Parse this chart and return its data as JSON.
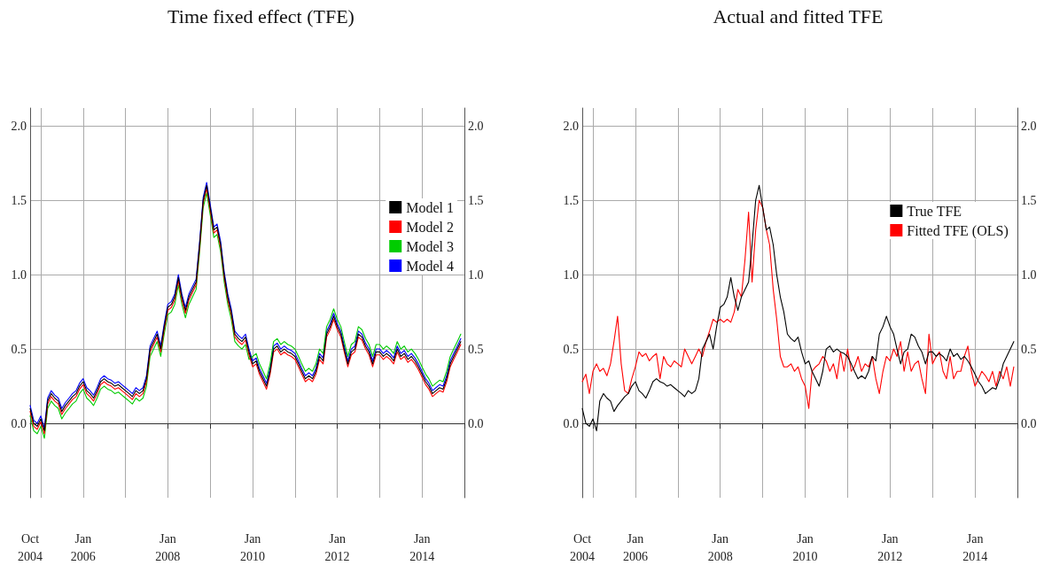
{
  "chart_data": [
    {
      "type": "line",
      "title": "Time fixed effect (TFE)",
      "legend": "right",
      "grid": true,
      "marker": "none",
      "line_style": "solid",
      "x": [
        "2004-10",
        "2004-11",
        "2004-12",
        "2005-01",
        "2005-02",
        "2005-03",
        "2005-04",
        "2005-05",
        "2005-06",
        "2005-07",
        "2005-08",
        "2005-09",
        "2005-10",
        "2005-11",
        "2005-12",
        "2006-01",
        "2006-02",
        "2006-03",
        "2006-04",
        "2006-05",
        "2006-06",
        "2006-07",
        "2006-08",
        "2006-09",
        "2006-10",
        "2006-11",
        "2006-12",
        "2007-01",
        "2007-02",
        "2007-03",
        "2007-04",
        "2007-05",
        "2007-06",
        "2007-07",
        "2007-08",
        "2007-09",
        "2007-10",
        "2007-11",
        "2007-12",
        "2008-01",
        "2008-02",
        "2008-03",
        "2008-04",
        "2008-05",
        "2008-06",
        "2008-07",
        "2008-08",
        "2008-09",
        "2008-10",
        "2008-11",
        "2008-12",
        "2009-01",
        "2009-02",
        "2009-03",
        "2009-04",
        "2009-05",
        "2009-06",
        "2009-07",
        "2009-08",
        "2009-09",
        "2009-10",
        "2009-11",
        "2009-12",
        "2010-01",
        "2010-02",
        "2010-03",
        "2010-04",
        "2010-05",
        "2010-06",
        "2010-07",
        "2010-08",
        "2010-09",
        "2010-10",
        "2010-11",
        "2010-12",
        "2011-01",
        "2011-02",
        "2011-03",
        "2011-04",
        "2011-05",
        "2011-06",
        "2011-07",
        "2011-08",
        "2011-09",
        "2011-10",
        "2011-11",
        "2011-12",
        "2012-01",
        "2012-02",
        "2012-03",
        "2012-04",
        "2012-05",
        "2012-06",
        "2012-07",
        "2012-08",
        "2012-09",
        "2012-10",
        "2012-11",
        "2012-12",
        "2013-01",
        "2013-02",
        "2013-03",
        "2013-04",
        "2013-05",
        "2013-06",
        "2013-07",
        "2013-08",
        "2013-09",
        "2013-10",
        "2013-11",
        "2013-12",
        "2014-01",
        "2014-02",
        "2014-03",
        "2014-04",
        "2014-05",
        "2014-06",
        "2014-07",
        "2014-08",
        "2014-09",
        "2014-10",
        "2014-11",
        "2014-12"
      ],
      "xlim": [
        "2004-10",
        "2015-01"
      ],
      "xticks": [
        {
          "value": "2004-10",
          "label": "Oct\n2004"
        },
        {
          "value": "2005-01",
          "label": null
        },
        {
          "value": "2006-01",
          "label": "Jan\n2006"
        },
        {
          "value": "2007-01",
          "label": null
        },
        {
          "value": "2008-01",
          "label": "Jan\n2008"
        },
        {
          "value": "2009-01",
          "label": null
        },
        {
          "value": "2010-01",
          "label": "Jan\n2010"
        },
        {
          "value": "2011-01",
          "label": null
        },
        {
          "value": "2012-01",
          "label": "Jan\n2012"
        },
        {
          "value": "2013-01",
          "label": null
        },
        {
          "value": "2014-01",
          "label": "Jan\n2014"
        },
        {
          "value": "2015-01",
          "label": null
        }
      ],
      "ylim": [
        -0.5,
        2.12
      ],
      "yticks": [
        {
          "value": 0,
          "label": "0.0"
        },
        {
          "value": 0.5,
          "label": "0.5"
        },
        {
          "value": 1,
          "label": "1.0"
        },
        {
          "value": 1.5,
          "label": "1.5"
        },
        {
          "value": 2,
          "label": "2.0"
        }
      ],
      "y2lim": [
        -0.5,
        2.12
      ],
      "y2ticks": [
        {
          "value": 0,
          "label": "0.0"
        },
        {
          "value": 0.5,
          "label": "0.5"
        },
        {
          "value": 1,
          "label": "1.0"
        },
        {
          "value": 1.5,
          "label": "1.5"
        },
        {
          "value": 2,
          "label": "2.0"
        }
      ],
      "series": [
        {
          "name": "Model 1",
          "color": "#000000",
          "values": [
            0.1,
            0.0,
            -0.02,
            0.03,
            -0.05,
            0.15,
            0.2,
            0.17,
            0.15,
            0.08,
            0.12,
            0.15,
            0.18,
            0.2,
            0.25,
            0.28,
            0.22,
            0.2,
            0.17,
            0.22,
            0.28,
            0.3,
            0.28,
            0.27,
            0.25,
            0.26,
            0.24,
            0.22,
            0.2,
            0.18,
            0.22,
            0.2,
            0.22,
            0.3,
            0.5,
            0.55,
            0.6,
            0.5,
            0.65,
            0.78,
            0.8,
            0.85,
            0.98,
            0.85,
            0.76,
            0.85,
            0.9,
            0.95,
            1.2,
            1.5,
            1.6,
            1.45,
            1.3,
            1.32,
            1.2,
            1.0,
            0.85,
            0.75,
            0.6,
            0.57,
            0.55,
            0.58,
            0.48,
            0.4,
            0.42,
            0.35,
            0.3,
            0.25,
            0.35,
            0.5,
            0.52,
            0.48,
            0.5,
            0.48,
            0.47,
            0.45,
            0.4,
            0.35,
            0.3,
            0.32,
            0.3,
            0.35,
            0.45,
            0.42,
            0.6,
            0.65,
            0.72,
            0.65,
            0.6,
            0.5,
            0.4,
            0.48,
            0.5,
            0.6,
            0.58,
            0.52,
            0.48,
            0.4,
            0.48,
            0.48,
            0.45,
            0.47,
            0.45,
            0.42,
            0.5,
            0.45,
            0.47,
            0.43,
            0.45,
            0.42,
            0.38,
            0.33,
            0.28,
            0.25,
            0.2,
            0.22,
            0.24,
            0.23,
            0.3,
            0.4,
            0.45,
            0.5,
            0.55
          ]
        },
        {
          "name": "Model 2",
          "color": "#ff0000",
          "values": [
            0.08,
            -0.02,
            -0.04,
            0.01,
            -0.07,
            0.13,
            0.18,
            0.15,
            0.13,
            0.06,
            0.1,
            0.13,
            0.16,
            0.18,
            0.23,
            0.26,
            0.2,
            0.18,
            0.15,
            0.2,
            0.26,
            0.28,
            0.26,
            0.25,
            0.23,
            0.24,
            0.22,
            0.2,
            0.18,
            0.16,
            0.2,
            0.18,
            0.2,
            0.28,
            0.48,
            0.53,
            0.58,
            0.48,
            0.63,
            0.76,
            0.78,
            0.83,
            0.96,
            0.83,
            0.74,
            0.83,
            0.88,
            0.93,
            1.18,
            1.48,
            1.58,
            1.43,
            1.28,
            1.3,
            1.18,
            0.98,
            0.83,
            0.73,
            0.58,
            0.55,
            0.53,
            0.56,
            0.46,
            0.38,
            0.4,
            0.33,
            0.28,
            0.23,
            0.33,
            0.48,
            0.5,
            0.46,
            0.48,
            0.46,
            0.45,
            0.43,
            0.38,
            0.33,
            0.28,
            0.3,
            0.28,
            0.33,
            0.43,
            0.4,
            0.58,
            0.63,
            0.7,
            0.63,
            0.58,
            0.48,
            0.38,
            0.46,
            0.48,
            0.58,
            0.56,
            0.5,
            0.46,
            0.38,
            0.46,
            0.46,
            0.43,
            0.45,
            0.43,
            0.4,
            0.48,
            0.43,
            0.45,
            0.41,
            0.43,
            0.4,
            0.36,
            0.31,
            0.26,
            0.23,
            0.18,
            0.2,
            0.22,
            0.21,
            0.28,
            0.38,
            0.43,
            0.48,
            0.53
          ]
        },
        {
          "name": "Model 3",
          "color": "#00cc00",
          "values": [
            0.05,
            -0.05,
            -0.07,
            -0.02,
            -0.1,
            0.1,
            0.15,
            0.12,
            0.1,
            0.03,
            0.07,
            0.1,
            0.13,
            0.15,
            0.2,
            0.23,
            0.17,
            0.15,
            0.12,
            0.17,
            0.23,
            0.25,
            0.23,
            0.22,
            0.2,
            0.21,
            0.19,
            0.17,
            0.15,
            0.13,
            0.17,
            0.15,
            0.17,
            0.25,
            0.45,
            0.5,
            0.55,
            0.45,
            0.6,
            0.73,
            0.75,
            0.8,
            0.93,
            0.8,
            0.71,
            0.8,
            0.85,
            0.9,
            1.15,
            1.45,
            1.55,
            1.4,
            1.25,
            1.27,
            1.15,
            0.95,
            0.8,
            0.7,
            0.55,
            0.52,
            0.5,
            0.53,
            0.43,
            0.45,
            0.47,
            0.4,
            0.35,
            0.3,
            0.4,
            0.55,
            0.57,
            0.53,
            0.55,
            0.53,
            0.52,
            0.5,
            0.45,
            0.4,
            0.35,
            0.37,
            0.35,
            0.4,
            0.5,
            0.47,
            0.65,
            0.7,
            0.77,
            0.7,
            0.65,
            0.55,
            0.45,
            0.53,
            0.55,
            0.65,
            0.63,
            0.57,
            0.53,
            0.45,
            0.53,
            0.53,
            0.5,
            0.52,
            0.5,
            0.47,
            0.55,
            0.5,
            0.52,
            0.48,
            0.5,
            0.47,
            0.43,
            0.38,
            0.33,
            0.3,
            0.25,
            0.27,
            0.29,
            0.28,
            0.35,
            0.45,
            0.5,
            0.55,
            0.6
          ]
        },
        {
          "name": "Model 4",
          "color": "#0000ff",
          "values": [
            0.12,
            0.02,
            0.0,
            0.05,
            -0.03,
            0.17,
            0.22,
            0.19,
            0.17,
            0.1,
            0.14,
            0.17,
            0.2,
            0.22,
            0.27,
            0.3,
            0.24,
            0.22,
            0.19,
            0.24,
            0.3,
            0.32,
            0.3,
            0.29,
            0.27,
            0.28,
            0.26,
            0.24,
            0.22,
            0.2,
            0.24,
            0.22,
            0.24,
            0.32,
            0.52,
            0.57,
            0.62,
            0.52,
            0.67,
            0.8,
            0.82,
            0.87,
            1.0,
            0.87,
            0.78,
            0.87,
            0.92,
            0.97,
            1.22,
            1.52,
            1.62,
            1.47,
            1.32,
            1.34,
            1.22,
            1.02,
            0.87,
            0.77,
            0.62,
            0.59,
            0.57,
            0.6,
            0.5,
            0.42,
            0.44,
            0.37,
            0.32,
            0.27,
            0.37,
            0.52,
            0.54,
            0.5,
            0.52,
            0.5,
            0.49,
            0.47,
            0.42,
            0.37,
            0.32,
            0.34,
            0.32,
            0.37,
            0.47,
            0.44,
            0.62,
            0.67,
            0.74,
            0.67,
            0.62,
            0.52,
            0.42,
            0.5,
            0.52,
            0.62,
            0.6,
            0.54,
            0.5,
            0.42,
            0.5,
            0.5,
            0.47,
            0.49,
            0.47,
            0.44,
            0.52,
            0.47,
            0.49,
            0.45,
            0.47,
            0.44,
            0.4,
            0.35,
            0.3,
            0.27,
            0.22,
            0.24,
            0.26,
            0.25,
            0.32,
            0.42,
            0.47,
            0.52,
            0.57
          ]
        }
      ]
    },
    {
      "type": "line",
      "title": "Actual and fitted TFE",
      "legend": "top right",
      "grid": true,
      "marker": "none",
      "line_style": "solid",
      "x": [
        "2004-10",
        "2004-11",
        "2004-12",
        "2005-01",
        "2005-02",
        "2005-03",
        "2005-04",
        "2005-05",
        "2005-06",
        "2005-07",
        "2005-08",
        "2005-09",
        "2005-10",
        "2005-11",
        "2005-12",
        "2006-01",
        "2006-02",
        "2006-03",
        "2006-04",
        "2006-05",
        "2006-06",
        "2006-07",
        "2006-08",
        "2006-09",
        "2006-10",
        "2006-11",
        "2006-12",
        "2007-01",
        "2007-02",
        "2007-03",
        "2007-04",
        "2007-05",
        "2007-06",
        "2007-07",
        "2007-08",
        "2007-09",
        "2007-10",
        "2007-11",
        "2007-12",
        "2008-01",
        "2008-02",
        "2008-03",
        "2008-04",
        "2008-05",
        "2008-06",
        "2008-07",
        "2008-08",
        "2008-09",
        "2008-10",
        "2008-11",
        "2008-12",
        "2009-01",
        "2009-02",
        "2009-03",
        "2009-04",
        "2009-05",
        "2009-06",
        "2009-07",
        "2009-08",
        "2009-09",
        "2009-10",
        "2009-11",
        "2009-12",
        "2010-01",
        "2010-02",
        "2010-03",
        "2010-04",
        "2010-05",
        "2010-06",
        "2010-07",
        "2010-08",
        "2010-09",
        "2010-10",
        "2010-11",
        "2010-12",
        "2011-01",
        "2011-02",
        "2011-03",
        "2011-04",
        "2011-05",
        "2011-06",
        "2011-07",
        "2011-08",
        "2011-09",
        "2011-10",
        "2011-11",
        "2011-12",
        "2012-01",
        "2012-02",
        "2012-03",
        "2012-04",
        "2012-05",
        "2012-06",
        "2012-07",
        "2012-08",
        "2012-09",
        "2012-10",
        "2012-11",
        "2012-12",
        "2013-01",
        "2013-02",
        "2013-03",
        "2013-04",
        "2013-05",
        "2013-06",
        "2013-07",
        "2013-08",
        "2013-09",
        "2013-10",
        "2013-11",
        "2013-12",
        "2014-01",
        "2014-02",
        "2014-03",
        "2014-04",
        "2014-05",
        "2014-06",
        "2014-07",
        "2014-08",
        "2014-09",
        "2014-10",
        "2014-11",
        "2014-12"
      ],
      "xlim": [
        "2004-10",
        "2015-01"
      ],
      "xticks": [
        {
          "value": "2004-10",
          "label": "Oct\n2004"
        },
        {
          "value": "2005-01",
          "label": null
        },
        {
          "value": "2006-01",
          "label": "Jan\n2006"
        },
        {
          "value": "2007-01",
          "label": null
        },
        {
          "value": "2008-01",
          "label": "Jan\n2008"
        },
        {
          "value": "2009-01",
          "label": null
        },
        {
          "value": "2010-01",
          "label": "Jan\n2010"
        },
        {
          "value": "2011-01",
          "label": null
        },
        {
          "value": "2012-01",
          "label": "Jan\n2012"
        },
        {
          "value": "2013-01",
          "label": null
        },
        {
          "value": "2014-01",
          "label": "Jan\n2014"
        },
        {
          "value": "2015-01",
          "label": null
        }
      ],
      "ylim": [
        -0.5,
        2.12
      ],
      "yticks": [
        {
          "value": 0,
          "label": "0.0"
        },
        {
          "value": 0.5,
          "label": "0.5"
        },
        {
          "value": 1,
          "label": "1.0"
        },
        {
          "value": 1.5,
          "label": "1.5"
        },
        {
          "value": 2,
          "label": "2.0"
        }
      ],
      "y2lim": [
        -0.5,
        2.12
      ],
      "y2ticks": [
        {
          "value": 0,
          "label": "0.0"
        },
        {
          "value": 0.5,
          "label": "0.5"
        },
        {
          "value": 1,
          "label": "1.0"
        },
        {
          "value": 1.5,
          "label": "1.5"
        },
        {
          "value": 2,
          "label": "2.0"
        }
      ],
      "series": [
        {
          "name": "True TFE",
          "color": "#000000",
          "values": [
            0.1,
            0.0,
            -0.02,
            0.03,
            -0.05,
            0.15,
            0.2,
            0.17,
            0.15,
            0.08,
            0.12,
            0.15,
            0.18,
            0.2,
            0.25,
            0.28,
            0.22,
            0.2,
            0.17,
            0.22,
            0.28,
            0.3,
            0.28,
            0.27,
            0.25,
            0.26,
            0.24,
            0.22,
            0.2,
            0.18,
            0.22,
            0.2,
            0.22,
            0.3,
            0.5,
            0.55,
            0.6,
            0.5,
            0.65,
            0.78,
            0.8,
            0.85,
            0.98,
            0.85,
            0.76,
            0.85,
            0.9,
            0.95,
            1.2,
            1.5,
            1.6,
            1.45,
            1.3,
            1.32,
            1.2,
            1.0,
            0.85,
            0.75,
            0.6,
            0.57,
            0.55,
            0.58,
            0.48,
            0.4,
            0.42,
            0.35,
            0.3,
            0.25,
            0.35,
            0.5,
            0.52,
            0.48,
            0.5,
            0.48,
            0.47,
            0.45,
            0.4,
            0.35,
            0.3,
            0.32,
            0.3,
            0.35,
            0.45,
            0.42,
            0.6,
            0.65,
            0.72,
            0.65,
            0.6,
            0.5,
            0.4,
            0.48,
            0.5,
            0.6,
            0.58,
            0.52,
            0.48,
            0.4,
            0.48,
            0.48,
            0.45,
            0.47,
            0.45,
            0.42,
            0.5,
            0.45,
            0.47,
            0.43,
            0.45,
            0.42,
            0.38,
            0.33,
            0.28,
            0.25,
            0.2,
            0.22,
            0.24,
            0.23,
            0.3,
            0.4,
            0.45,
            0.5,
            0.55
          ]
        },
        {
          "name": "Fitted TFE (OLS)",
          "color": "#ff0000",
          "values": [
            0.28,
            0.33,
            0.2,
            0.35,
            0.4,
            0.35,
            0.37,
            0.32,
            0.4,
            0.55,
            0.72,
            0.4,
            0.22,
            0.2,
            0.3,
            0.38,
            0.48,
            0.45,
            0.47,
            0.42,
            0.45,
            0.47,
            0.3,
            0.45,
            0.4,
            0.38,
            0.42,
            0.4,
            0.38,
            0.5,
            0.45,
            0.4,
            0.45,
            0.5,
            0.45,
            0.55,
            0.62,
            0.7,
            0.68,
            0.7,
            0.68,
            0.7,
            0.68,
            0.75,
            0.9,
            0.85,
            1.1,
            1.42,
            0.95,
            1.3,
            1.5,
            1.45,
            1.3,
            1.2,
            0.9,
            0.7,
            0.45,
            0.38,
            0.38,
            0.4,
            0.35,
            0.38,
            0.3,
            0.25,
            0.1,
            0.35,
            0.38,
            0.4,
            0.45,
            0.42,
            0.35,
            0.4,
            0.3,
            0.48,
            0.35,
            0.5,
            0.35,
            0.38,
            0.45,
            0.35,
            0.4,
            0.38,
            0.45,
            0.3,
            0.2,
            0.35,
            0.45,
            0.42,
            0.5,
            0.45,
            0.55,
            0.35,
            0.48,
            0.35,
            0.4,
            0.42,
            0.3,
            0.2,
            0.6,
            0.4,
            0.45,
            0.48,
            0.35,
            0.3,
            0.45,
            0.3,
            0.35,
            0.35,
            0.45,
            0.52,
            0.35,
            0.25,
            0.3,
            0.35,
            0.32,
            0.28,
            0.35,
            0.25,
            0.35,
            0.3,
            0.38,
            0.25,
            0.38
          ]
        }
      ]
    }
  ]
}
